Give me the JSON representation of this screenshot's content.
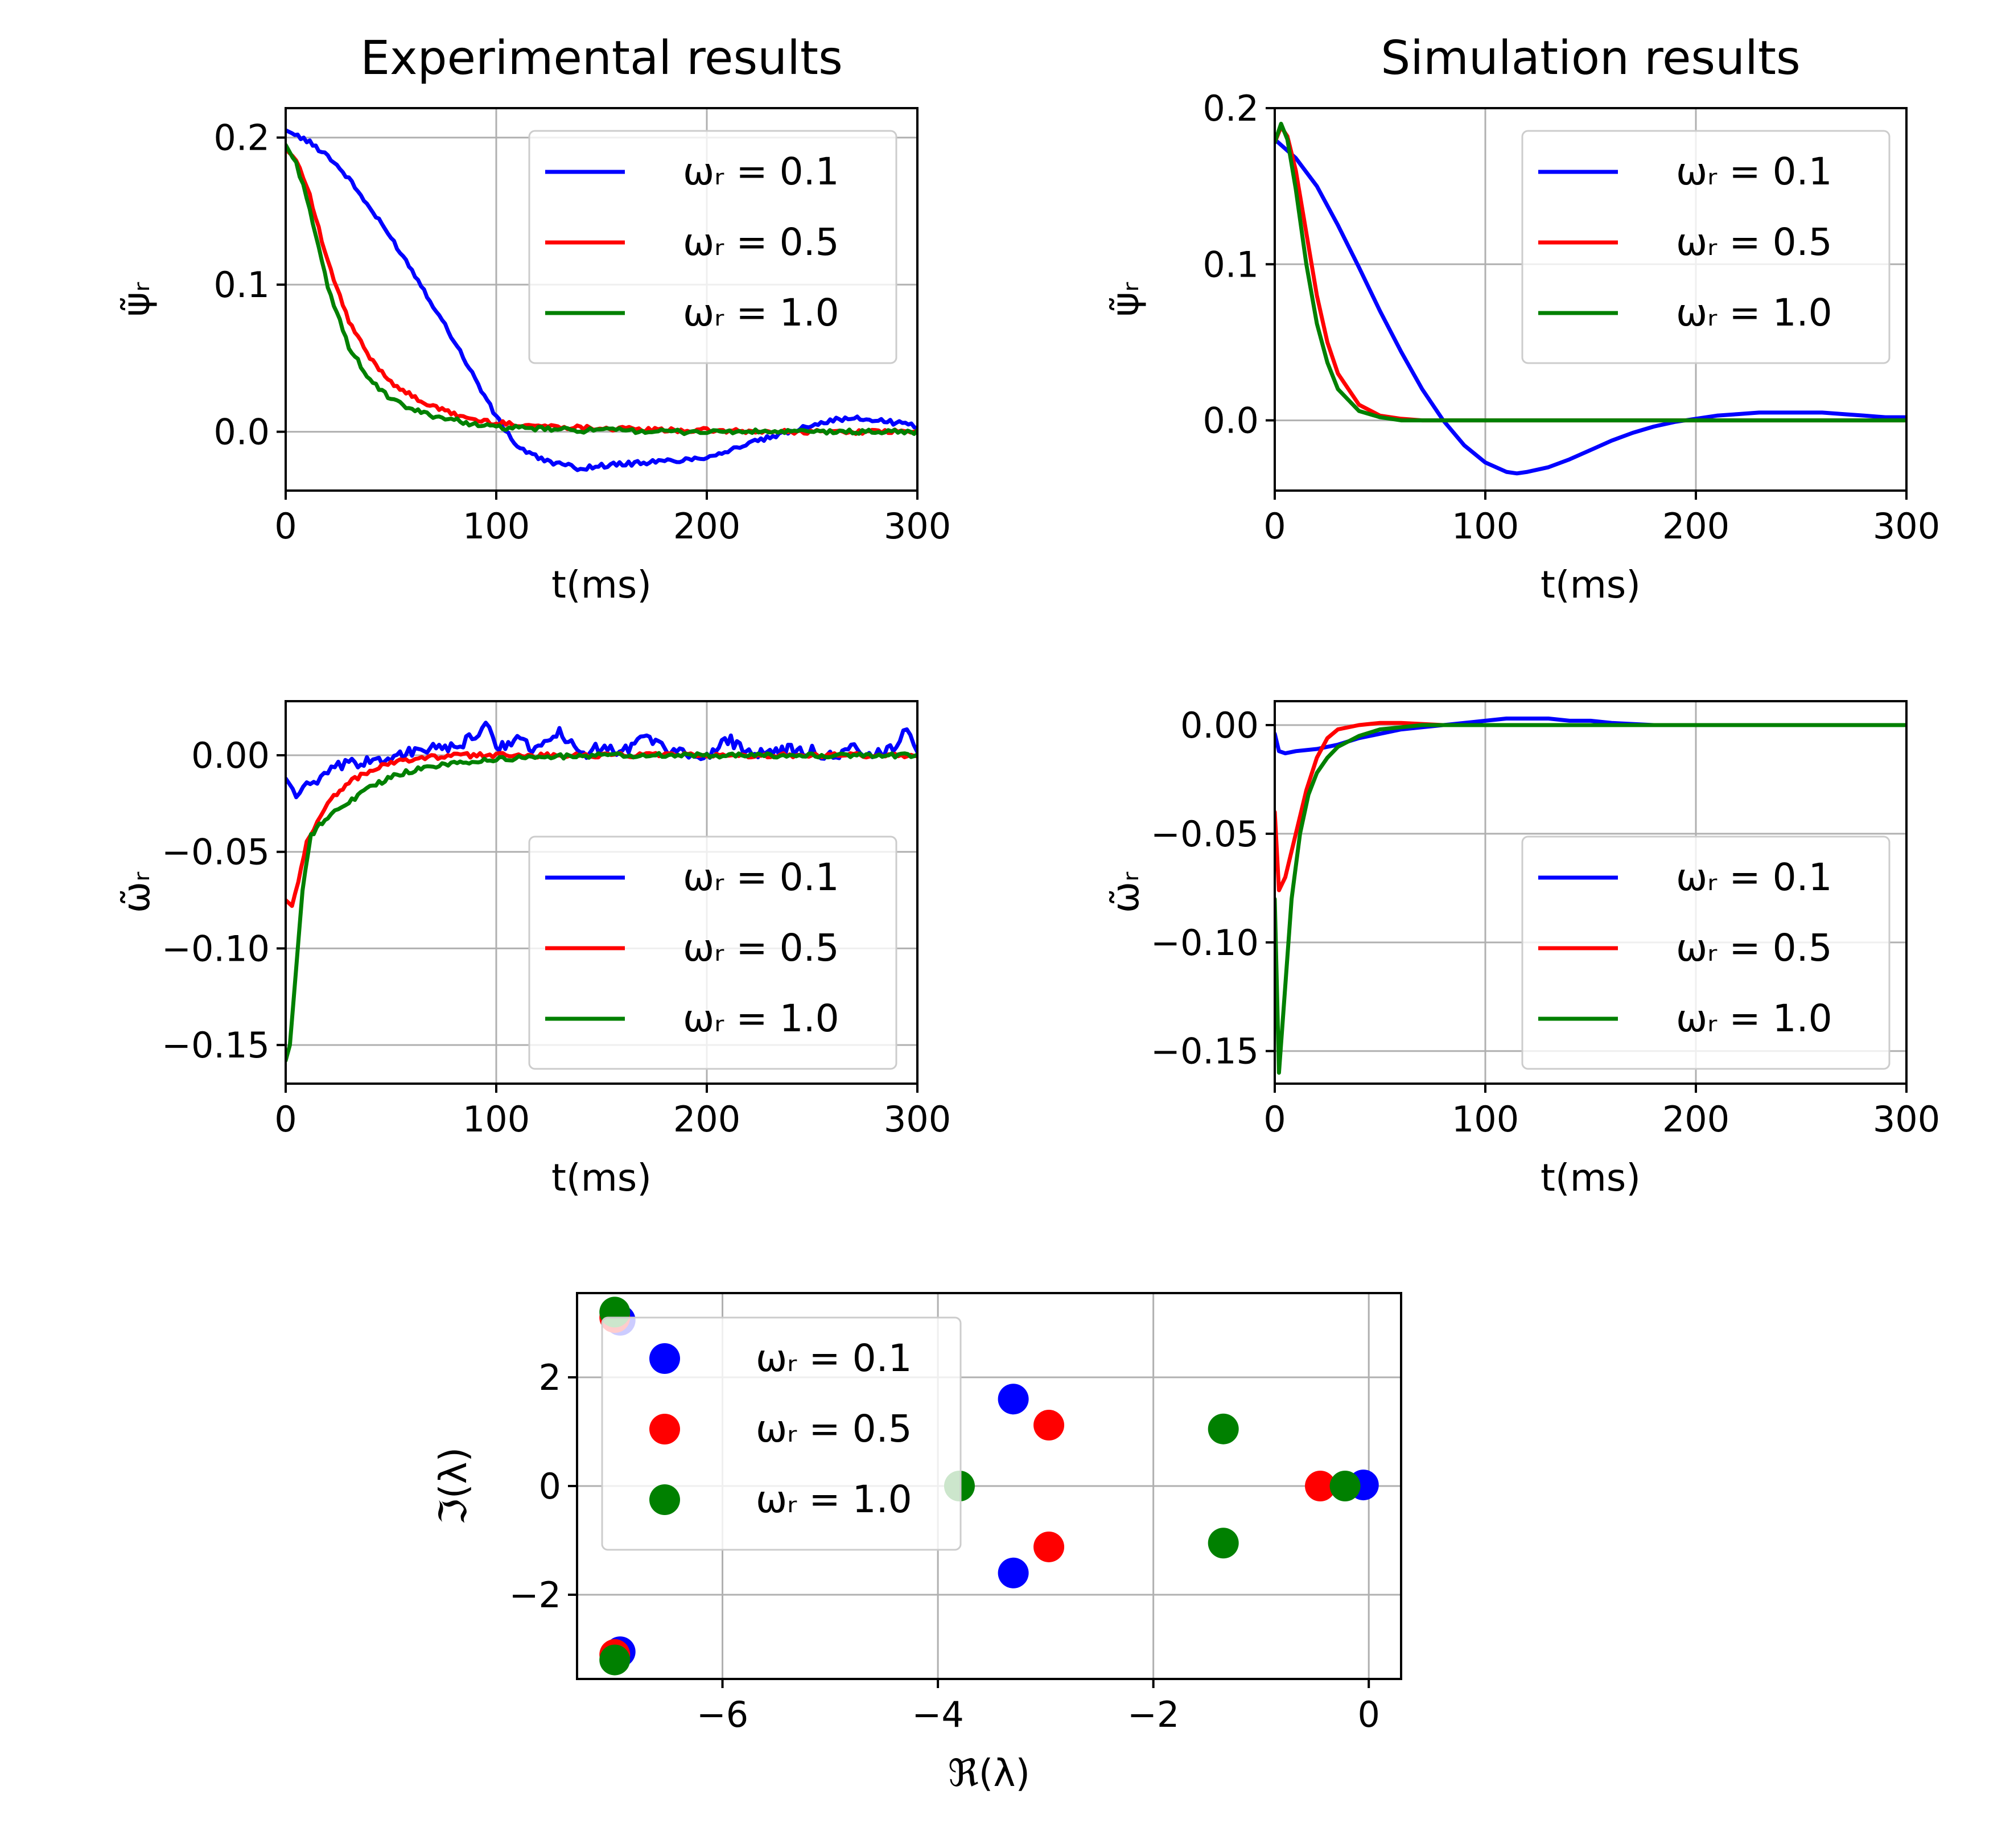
{
  "chart_data": [
    {
      "id": "exp-psi",
      "type": "line",
      "title": "Experimental results",
      "xlabel": "t(ms)",
      "ylabel": "ψ̃ᵣ",
      "xlim": [
        0,
        300
      ],
      "ylim": [
        -0.04,
        0.22
      ],
      "xticks": [
        0,
        100,
        200,
        300
      ],
      "xtick_labels": [
        "0",
        "100",
        "200",
        "300"
      ],
      "yticks": [
        0.0,
        0.1,
        0.2
      ],
      "ytick_labels": [
        "0.0",
        "0.1",
        "0.2"
      ],
      "legend_position": "top-right",
      "series": [
        {
          "name": "ωᵣ = 0.1",
          "color": "#0000ff",
          "noisy": true,
          "x": [
            0,
            10,
            20,
            30,
            40,
            50,
            60,
            70,
            80,
            90,
            100,
            110,
            120,
            130,
            140,
            150,
            160,
            170,
            180,
            190,
            200,
            210,
            220,
            230,
            240,
            250,
            260,
            270,
            280,
            290,
            300
          ],
          "y": [
            0.205,
            0.198,
            0.188,
            0.172,
            0.152,
            0.132,
            0.11,
            0.086,
            0.062,
            0.036,
            0.01,
            -0.01,
            -0.018,
            -0.022,
            -0.025,
            -0.023,
            -0.022,
            -0.021,
            -0.02,
            -0.019,
            -0.017,
            -0.013,
            -0.008,
            -0.004,
            0.0,
            0.005,
            0.008,
            0.009,
            0.008,
            0.006,
            0.004
          ]
        },
        {
          "name": "ωᵣ = 0.5",
          "color": "#ff0000",
          "noisy": true,
          "x": [
            0,
            5,
            10,
            20,
            30,
            40,
            50,
            60,
            70,
            80,
            90,
            100,
            120,
            140,
            160,
            180,
            200,
            220,
            240,
            260,
            280,
            300
          ],
          "y": [
            0.192,
            0.185,
            0.168,
            0.115,
            0.075,
            0.05,
            0.034,
            0.024,
            0.017,
            0.012,
            0.008,
            0.006,
            0.004,
            0.003,
            0.002,
            0.001,
            0.001,
            0.0,
            0.0,
            0.0,
            0.0,
            0.0
          ]
        },
        {
          "name": "ωᵣ = 1.0",
          "color": "#008000",
          "noisy": true,
          "x": [
            0,
            5,
            10,
            20,
            30,
            40,
            50,
            60,
            70,
            80,
            90,
            100,
            120,
            140,
            160,
            180,
            200,
            220,
            240,
            260,
            280,
            300
          ],
          "y": [
            0.195,
            0.182,
            0.16,
            0.098,
            0.058,
            0.035,
            0.022,
            0.015,
            0.011,
            0.008,
            0.005,
            0.003,
            0.002,
            0.001,
            0.001,
            0.0,
            0.0,
            0.0,
            0.0,
            0.0,
            0.0,
            0.0
          ]
        }
      ]
    },
    {
      "id": "sim-psi",
      "type": "line",
      "title": "Simulation results",
      "xlabel": "t(ms)",
      "ylabel": "ψ̃ᵣ",
      "xlim": [
        0,
        300
      ],
      "ylim": [
        -0.045,
        0.2
      ],
      "xticks": [
        0,
        100,
        200,
        300
      ],
      "xtick_labels": [
        "0",
        "100",
        "200",
        "300"
      ],
      "yticks": [
        0.0,
        0.1,
        0.2
      ],
      "ytick_labels": [
        "0.0",
        "0.1",
        "0.2"
      ],
      "legend_position": "top-right",
      "series": [
        {
          "name": "ωᵣ = 0.1",
          "color": "#0000ff",
          "noisy": false,
          "x": [
            0,
            10,
            20,
            30,
            40,
            50,
            60,
            70,
            80,
            90,
            100,
            110,
            115,
            120,
            130,
            140,
            150,
            160,
            170,
            180,
            190,
            200,
            210,
            220,
            230,
            240,
            250,
            260,
            270,
            280,
            290,
            300
          ],
          "y": [
            0.18,
            0.168,
            0.15,
            0.125,
            0.098,
            0.07,
            0.044,
            0.02,
            0.0,
            -0.016,
            -0.027,
            -0.033,
            -0.034,
            -0.033,
            -0.03,
            -0.025,
            -0.019,
            -0.013,
            -0.008,
            -0.004,
            -0.001,
            0.001,
            0.003,
            0.004,
            0.005,
            0.005,
            0.005,
            0.005,
            0.004,
            0.003,
            0.002,
            0.002
          ]
        },
        {
          "name": "ωᵣ = 0.5",
          "color": "#ff0000",
          "noisy": false,
          "x": [
            0,
            3,
            6,
            10,
            15,
            20,
            25,
            30,
            40,
            50,
            60,
            70,
            80,
            100,
            150,
            200,
            250,
            300
          ],
          "y": [
            0.178,
            0.188,
            0.182,
            0.16,
            0.12,
            0.08,
            0.05,
            0.03,
            0.01,
            0.003,
            0.001,
            0.0,
            0.0,
            0.0,
            0.0,
            0.0,
            0.0,
            0.0
          ]
        },
        {
          "name": "ωᵣ = 1.0",
          "color": "#008000",
          "noisy": false,
          "x": [
            0,
            3,
            6,
            10,
            15,
            20,
            25,
            30,
            40,
            50,
            60,
            70,
            80,
            100,
            150,
            200,
            250,
            300
          ],
          "y": [
            0.178,
            0.19,
            0.18,
            0.148,
            0.1,
            0.062,
            0.037,
            0.02,
            0.006,
            0.002,
            0.0,
            0.0,
            0.0,
            0.0,
            0.0,
            0.0,
            0.0,
            0.0
          ]
        }
      ]
    },
    {
      "id": "exp-omega",
      "type": "line",
      "xlabel": "t(ms)",
      "ylabel": "ω̃ᵣ",
      "xlim": [
        0,
        300
      ],
      "ylim": [
        -0.17,
        0.028
      ],
      "xticks": [
        0,
        100,
        200,
        300
      ],
      "xtick_labels": [
        "0",
        "100",
        "200",
        "300"
      ],
      "yticks": [
        0.0,
        -0.05,
        -0.1,
        -0.15
      ],
      "ytick_labels": [
        "0.00",
        "−0.05",
        "−0.10",
        "−0.15"
      ],
      "legend_position": "bottom-right",
      "series": [
        {
          "name": "ωᵣ = 0.1",
          "color": "#0000ff",
          "noisy": true,
          "x": [
            0,
            5,
            10,
            15,
            20,
            25,
            30,
            40,
            50,
            60,
            70,
            80,
            90,
            95,
            100,
            110,
            120,
            130,
            140,
            150,
            160,
            170,
            180,
            190,
            200,
            210,
            220,
            230,
            240,
            250,
            260,
            270,
            280,
            290,
            295,
            300
          ],
          "y": [
            -0.012,
            -0.02,
            -0.016,
            -0.014,
            -0.01,
            -0.006,
            -0.005,
            -0.003,
            -0.001,
            0.002,
            0.003,
            0.004,
            0.01,
            0.017,
            0.004,
            0.008,
            0.003,
            0.012,
            0.0,
            0.005,
            0.002,
            0.01,
            0.004,
            0.001,
            -0.002,
            0.008,
            0.003,
            0.0,
            0.003,
            0.002,
            -0.001,
            0.004,
            0.0,
            0.005,
            0.015,
            0.003
          ]
        },
        {
          "name": "ωᵣ = 0.5",
          "color": "#ff0000",
          "noisy": true,
          "x": [
            0,
            3,
            6,
            10,
            15,
            20,
            30,
            40,
            50,
            60,
            80,
            100,
            150,
            200,
            250,
            300
          ],
          "y": [
            -0.075,
            -0.078,
            -0.065,
            -0.045,
            -0.035,
            -0.024,
            -0.014,
            -0.008,
            -0.004,
            -0.002,
            0.0,
            0.0,
            0.0,
            0.0,
            0.0,
            0.0
          ]
        },
        {
          "name": "ωᵣ = 1.0",
          "color": "#008000",
          "noisy": true,
          "x": [
            0,
            2,
            5,
            8,
            12,
            16,
            20,
            25,
            30,
            40,
            50,
            60,
            70,
            80,
            90,
            100,
            120,
            150,
            200,
            250,
            300
          ],
          "y": [
            -0.158,
            -0.15,
            -0.11,
            -0.07,
            -0.042,
            -0.036,
            -0.032,
            -0.028,
            -0.024,
            -0.017,
            -0.011,
            -0.008,
            -0.006,
            -0.004,
            -0.003,
            -0.002,
            -0.001,
            0.0,
            0.0,
            0.0,
            0.0
          ]
        }
      ]
    },
    {
      "id": "sim-omega",
      "type": "line",
      "xlabel": "t(ms)",
      "ylabel": "ω̃ᵣ",
      "xlim": [
        0,
        300
      ],
      "ylim": [
        -0.165,
        0.011
      ],
      "xticks": [
        0,
        100,
        200,
        300
      ],
      "xtick_labels": [
        "0",
        "100",
        "200",
        "300"
      ],
      "yticks": [
        0.0,
        -0.05,
        -0.1,
        -0.15
      ],
      "ytick_labels": [
        "0.00",
        "−0.05",
        "−0.10",
        "−0.15"
      ],
      "legend_position": "bottom-right",
      "series": [
        {
          "name": "ωᵣ = 0.1",
          "color": "#0000ff",
          "noisy": false,
          "x": [
            0,
            2,
            5,
            10,
            20,
            30,
            40,
            50,
            60,
            70,
            80,
            90,
            100,
            110,
            120,
            130,
            140,
            150,
            160,
            180,
            200,
            220,
            250,
            300
          ],
          "y": [
            -0.004,
            -0.012,
            -0.013,
            -0.012,
            -0.011,
            -0.009,
            -0.006,
            -0.004,
            -0.002,
            -0.001,
            0.0,
            0.001,
            0.002,
            0.003,
            0.003,
            0.003,
            0.002,
            0.002,
            0.001,
            0.0,
            0.0,
            0.0,
            0.0,
            0.0
          ]
        },
        {
          "name": "ωᵣ = 0.5",
          "color": "#ff0000",
          "noisy": false,
          "x": [
            0,
            2,
            5,
            10,
            15,
            20,
            25,
            30,
            40,
            50,
            60,
            80,
            100,
            150,
            200,
            250,
            300
          ],
          "y": [
            -0.04,
            -0.076,
            -0.07,
            -0.05,
            -0.03,
            -0.015,
            -0.006,
            -0.002,
            0.0,
            0.001,
            0.001,
            0.0,
            0.0,
            0.0,
            0.0,
            0.0,
            0.0
          ]
        },
        {
          "name": "ωᵣ = 1.0",
          "color": "#008000",
          "noisy": false,
          "x": [
            0,
            2,
            5,
            8,
            12,
            16,
            20,
            25,
            30,
            40,
            50,
            60,
            70,
            80,
            100,
            150,
            200,
            250,
            300
          ],
          "y": [
            -0.08,
            -0.16,
            -0.12,
            -0.08,
            -0.05,
            -0.032,
            -0.022,
            -0.015,
            -0.01,
            -0.005,
            -0.002,
            -0.001,
            0.0,
            0.0,
            0.0,
            0.0,
            0.0,
            0.0,
            0.0
          ]
        }
      ]
    },
    {
      "id": "eigenvalues",
      "type": "scatter",
      "xlabel": "ℜ(λ)",
      "ylabel": "ℑ(λ)",
      "xlim": [
        -7.35,
        0.3
      ],
      "ylim": [
        -3.55,
        3.55
      ],
      "xticks": [
        -6,
        -4,
        -2,
        0
      ],
      "xtick_labels": [
        "−6",
        "−4",
        "−2",
        "0"
      ],
      "yticks": [
        -2,
        0,
        2
      ],
      "ytick_labels": [
        "−2",
        "0",
        "2"
      ],
      "legend_position": "upper-left",
      "series": [
        {
          "name": "ωᵣ = 0.1",
          "color": "#0000ff",
          "points": [
            [
              -6.95,
              3.05
            ],
            [
              -6.95,
              -3.05
            ],
            [
              -3.3,
              1.6
            ],
            [
              -3.3,
              -1.6
            ],
            [
              -0.05,
              0.02
            ]
          ]
        },
        {
          "name": "ωᵣ = 0.5",
          "color": "#ff0000",
          "points": [
            [
              -7.0,
              3.1
            ],
            [
              -7.0,
              -3.1
            ],
            [
              -2.97,
              1.12
            ],
            [
              -2.97,
              -1.12
            ],
            [
              -0.45,
              0.0
            ]
          ]
        },
        {
          "name": "ωᵣ = 1.0",
          "color": "#008000",
          "points": [
            [
              -7.0,
              3.2
            ],
            [
              -7.0,
              -3.2
            ],
            [
              -3.8,
              0.0
            ],
            [
              -1.35,
              1.05
            ],
            [
              -1.35,
              -1.05
            ],
            [
              -0.22,
              0.0
            ]
          ]
        }
      ]
    }
  ]
}
